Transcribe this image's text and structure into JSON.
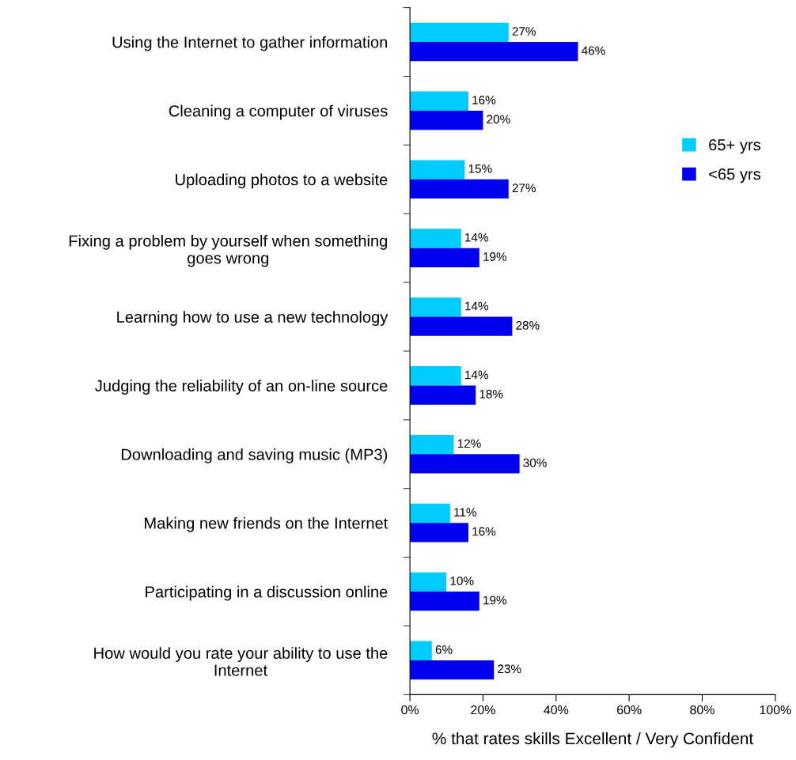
{
  "chart_data": {
    "type": "bar",
    "orientation": "horizontal",
    "xlabel": "% that rates skills Excellent / Very Confident",
    "categories": [
      "Using the Internet to gather information",
      "Cleaning a computer of viruses",
      "Uploading photos to a website",
      "Fixing a problem by yourself when something\ngoes wrong",
      "Learning how to use a new technology",
      "Judging the reliability of an on-line source",
      "Downloading and saving music (MP3)",
      "Making new friends on the Internet",
      "Participating in a discussion online",
      "How would you rate your ability to use the\nInternet"
    ],
    "series": [
      {
        "name": "65+ yrs",
        "color": "#00ccff",
        "values": [
          27,
          16,
          15,
          14,
          14,
          14,
          12,
          11,
          10,
          6
        ],
        "value_labels": [
          "27%",
          "16%",
          "15%",
          "14%",
          "14%",
          "14%",
          "12%",
          "11%",
          "10%",
          "6%"
        ]
      },
      {
        "name": "<65 yrs",
        "color": "#0000ee",
        "values": [
          46,
          20,
          27,
          19,
          28,
          18,
          30,
          16,
          19,
          23
        ],
        "value_labels": [
          "46%",
          "20%",
          "27%",
          "19%",
          "28%",
          "18%",
          "30%",
          "16%",
          "19%",
          "23%"
        ]
      }
    ],
    "xlim": [
      0,
      100
    ],
    "xticks": [
      {
        "value": 0,
        "label": "0%"
      },
      {
        "value": 20,
        "label": "20%"
      },
      {
        "value": 40,
        "label": "40%"
      },
      {
        "value": 60,
        "label": "60%"
      },
      {
        "value": 80,
        "label": "80%"
      },
      {
        "value": 100,
        "label": "100%"
      }
    ],
    "legend": "right",
    "grid": false
  }
}
